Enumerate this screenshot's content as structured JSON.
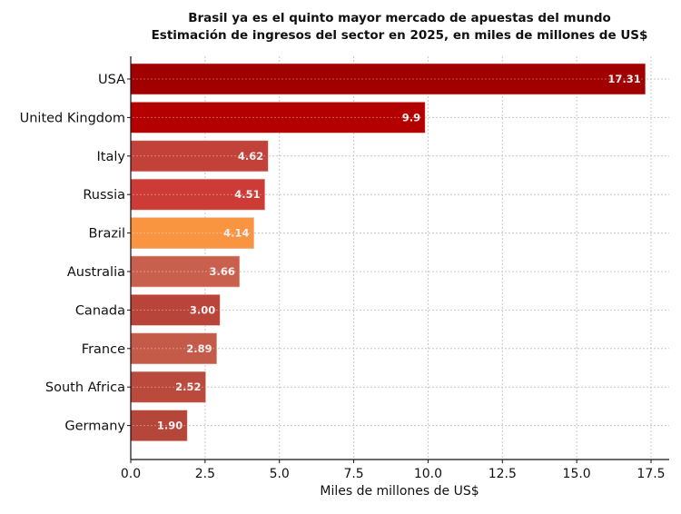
{
  "chart_data": {
    "type": "bar",
    "orientation": "horizontal",
    "title": "Brasil ya es el quinto mayor mercado de apuestas del mundo",
    "subtitle": "Estimación de ingresos del sector en 2025, en miles de millones de US$",
    "xlabel": "Miles de millones de US$",
    "ylabel": "",
    "xlim": [
      0,
      18.1
    ],
    "xticks": [
      "0.0",
      "2.5",
      "5.0",
      "7.5",
      "10.0",
      "12.5",
      "15.0",
      "17.5"
    ],
    "grid": true,
    "categories": [
      "USA",
      "United Kingdom",
      "Italy",
      "Russia",
      "Brazil",
      "Australia",
      "Canada",
      "France",
      "South Africa",
      "Germany"
    ],
    "values": [
      17.31,
      9.9,
      4.62,
      4.51,
      4.14,
      3.66,
      3.0,
      2.89,
      2.52,
      1.9
    ],
    "data_labels": [
      "17.31",
      "9.9",
      "4.62",
      "4.51",
      "4.14",
      "3.66",
      "3.00",
      "2.89",
      "2.52",
      "1.90"
    ],
    "colors": [
      "#a00000",
      "#b30000",
      "#c2423a",
      "#cc3b35",
      "#f99540",
      "#c9604e",
      "#b9453a",
      "#c45a48",
      "#b94a3c",
      "#b5463a"
    ],
    "highlight": "Brazil"
  }
}
